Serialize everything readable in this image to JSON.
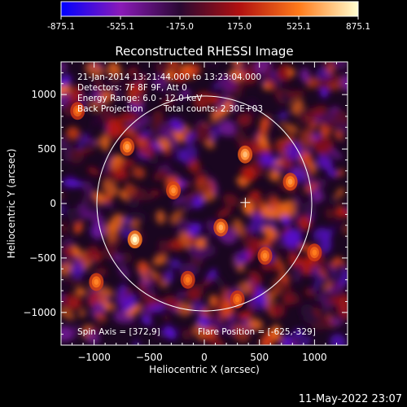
{
  "chart_data": {
    "type": "heatmap",
    "title": "Reconstructed RHESSI Image",
    "xlabel": "Heliocentric X (arcsec)",
    "ylabel": "Heliocentric Y (arcsec)",
    "xlim": [
      -1300,
      1300
    ],
    "ylim": [
      -1300,
      1300
    ],
    "x_ticks": [
      -1000,
      -500,
      0,
      500,
      1000
    ],
    "y_ticks": [
      -1000,
      -500,
      0,
      500,
      1000
    ],
    "colorbar": {
      "ticks": [
        "-875.1",
        "-525.1",
        "-175.0",
        "175.0",
        "525.1",
        "875.1"
      ],
      "range": [
        -875.1,
        875.1
      ],
      "colors": [
        "#0000ff",
        "#8a1ab8",
        "#2a0833",
        "#b01010",
        "#ff7a1a",
        "#ffffd0"
      ]
    },
    "annotations": [
      "21-Jan-2014 13:21:44.000 to 13:23:04.000",
      "Detectors: 7F 8F 9F, Att 0",
      "Energy Range: 6.0 - 12.0 keV",
      "Back Projection",
      "Total counts: 2.30E+03"
    ],
    "spin_axis": "Spin Axis = [372,9]",
    "flare_position": "Flare Position = [-625,-329]",
    "solar_limb": {
      "center": [
        0,
        0
      ],
      "radius": 975
    },
    "marker": {
      "type": "cross",
      "x": 372,
      "y": 9
    },
    "hot_spots": [
      {
        "x": -630,
        "y": -330,
        "level": 875.1
      },
      {
        "x": 370,
        "y": 450,
        "level": 700
      },
      {
        "x": 150,
        "y": -220,
        "level": 650
      },
      {
        "x": -700,
        "y": 520,
        "level": 620
      },
      {
        "x": 780,
        "y": 200,
        "level": 600
      },
      {
        "x": -280,
        "y": 120,
        "level": 580
      },
      {
        "x": 550,
        "y": -480,
        "level": 560
      },
      {
        "x": -980,
        "y": -720,
        "level": 550
      },
      {
        "x": 1000,
        "y": -450,
        "level": 530
      },
      {
        "x": -150,
        "y": -700,
        "level": 520
      },
      {
        "x": 300,
        "y": -880,
        "level": 500
      },
      {
        "x": -1150,
        "y": 850,
        "level": 500
      }
    ]
  },
  "footer": {
    "timestamp": "11-May-2022 23:07"
  }
}
